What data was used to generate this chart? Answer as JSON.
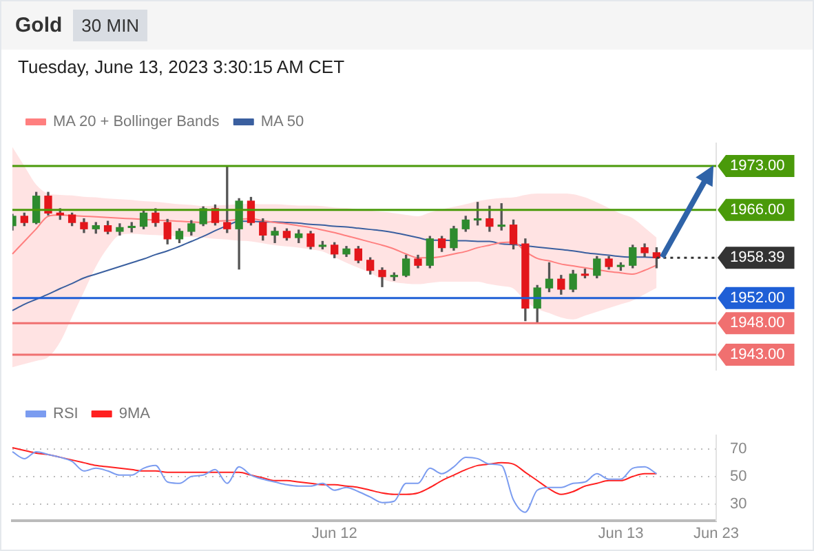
{
  "chart_data": [
    {
      "type": "candlestick",
      "title": "Gold",
      "subtitle": "Tuesday, June 13, 2023 3:30:15 AM CET",
      "annotations": [
        "30 MIN"
      ],
      "categories": [
        null,
        null,
        null,
        null,
        null,
        null,
        null,
        null,
        null,
        null,
        null,
        null,
        null,
        null,
        null,
        null,
        null,
        null,
        null,
        null,
        null,
        null,
        null,
        null,
        null,
        null,
        null,
        null,
        null,
        null,
        null,
        null,
        null,
        null,
        null,
        null,
        null,
        null,
        null,
        null,
        null,
        null,
        null,
        null,
        null,
        null,
        null,
        null,
        null,
        null,
        null,
        null,
        null,
        null,
        null,
        null,
        null,
        null,
        null,
        null
      ],
      "ohlc": [
        [
          1963.5,
          1965.3,
          1962.8,
          1965
        ],
        [
          1965,
          1965.5,
          1963.5,
          1964
        ],
        [
          1964,
          1968.8,
          1963.8,
          1968.2
        ],
        [
          1968.2,
          1968.8,
          1965.2,
          1965.5
        ],
        [
          1965.5,
          1966.2,
          1964.5,
          1965.2
        ],
        [
          1965.2,
          1965.5,
          1963.5,
          1964
        ],
        [
          1964,
          1964.6,
          1962.4,
          1963
        ],
        [
          1963,
          1964,
          1962.3,
          1963.5
        ],
        [
          1963.5,
          1964.2,
          1962.2,
          1962.6
        ],
        [
          1962.6,
          1963.8,
          1962,
          1963.2
        ],
        [
          1963.2,
          1964,
          1962.5,
          1963.4
        ],
        [
          1963.4,
          1965.8,
          1963,
          1965.5
        ],
        [
          1965.5,
          1966.2,
          1963.4,
          1964
        ],
        [
          1964,
          1964.5,
          1960.6,
          1961.4
        ],
        [
          1961.4,
          1963,
          1960.8,
          1962.6
        ],
        [
          1962.6,
          1964.3,
          1962,
          1963.8
        ],
        [
          1963.8,
          1966.5,
          1963.5,
          1966.2
        ],
        [
          1966.2,
          1966.8,
          1963.6,
          1964
        ],
        [
          1964,
          1973,
          1962.4,
          1963
        ],
        [
          1963,
          1967.8,
          1956.6,
          1967.4
        ],
        [
          1967.4,
          1968,
          1963.6,
          1964
        ],
        [
          1964,
          1964.6,
          1961.2,
          1962
        ],
        [
          1962,
          1963.2,
          1960.8,
          1962.6
        ],
        [
          1962.6,
          1963,
          1961.2,
          1961.6
        ],
        [
          1961.6,
          1962.8,
          1960.8,
          1962.2
        ],
        [
          1962.2,
          1962.6,
          1959.8,
          1960.2
        ],
        [
          1960.2,
          1961,
          1959.8,
          1960.4
        ],
        [
          1960.4,
          1960.8,
          1958.4,
          1959
        ],
        [
          1959,
          1960.2,
          1958.6,
          1959.8
        ],
        [
          1959.8,
          1960.2,
          1957.6,
          1958
        ],
        [
          1958,
          1958.4,
          1955.8,
          1956.4
        ],
        [
          1956.4,
          1956.8,
          1953.8,
          1955.4
        ],
        [
          1955.4,
          1956,
          1954.8,
          1955.6
        ],
        [
          1955.6,
          1958.8,
          1955.4,
          1958.2
        ],
        [
          1958.2,
          1958.8,
          1956.8,
          1957.2
        ],
        [
          1957.2,
          1961.8,
          1956.8,
          1961.4
        ],
        [
          1961.4,
          1961.8,
          1959.4,
          1960
        ],
        [
          1960,
          1963.4,
          1959.6,
          1963
        ],
        [
          1963,
          1965,
          1962.6,
          1964.4
        ],
        [
          1964.4,
          1967.2,
          1963.6,
          1964.6
        ],
        [
          1964.6,
          1966.6,
          1962.6,
          1963.4
        ],
        [
          1963.4,
          1967,
          1962.8,
          1963.6
        ],
        [
          1963.6,
          1964.4,
          1959.8,
          1960.6
        ],
        [
          1960.6,
          1961.4,
          1948.4,
          1950.4
        ],
        [
          1950.4,
          1954,
          1948,
          1953.6
        ],
        [
          1953.6,
          1957.6,
          1953,
          1955
        ],
        [
          1955,
          1955.6,
          1952.6,
          1953.4
        ],
        [
          1953.4,
          1956.4,
          1953,
          1955.8
        ],
        [
          1955.8,
          1956.6,
          1955.2,
          1955.6
        ],
        [
          1955.6,
          1958.6,
          1955.2,
          1958.2
        ],
        [
          1958.2,
          1958.6,
          1956.6,
          1957
        ],
        [
          1957,
          1957.6,
          1956.4,
          1957.2
        ],
        [
          1957.2,
          1960.4,
          1956.8,
          1960
        ],
        [
          1960,
          1960.6,
          1958.6,
          1959.2
        ],
        [
          1959.2,
          1960,
          1956.8,
          1958.4
        ],
        null,
        null,
        null,
        null,
        null
      ],
      "colors": [
        "#2e8b2e",
        "#e3161b",
        "#2e8b2e",
        "#e3161b",
        "#e3161b",
        "#e3161b",
        "#e3161b",
        "#2e8b2e",
        "#e3161b",
        "#2e8b2e",
        "#2e8b2e",
        "#2e8b2e",
        "#e3161b",
        "#e3161b",
        "#2e8b2e",
        "#2e8b2e",
        "#2e8b2e",
        "#e3161b",
        "#e3161b",
        "#2e8b2e",
        "#e3161b",
        "#e3161b",
        "#2e8b2e",
        "#e3161b",
        "#2e8b2e",
        "#e3161b",
        "#2e8b2e",
        "#e3161b",
        "#2e8b2e",
        "#e3161b",
        "#e3161b",
        "#e3161b",
        "#2e8b2e",
        "#2e8b2e",
        "#e3161b",
        "#2e8b2e",
        "#e3161b",
        "#2e8b2e",
        "#2e8b2e",
        "#2e8b2e",
        "#e3161b",
        "#2e8b2e",
        "#e3161b",
        "#e3161b",
        "#2e8b2e",
        "#2e8b2e",
        "#e3161b",
        "#2e8b2e",
        "#e3161b",
        "#2e8b2e",
        "#e3161b",
        "#2e8b2e",
        "#2e8b2e",
        "#e3161b",
        "#e3161b",
        null,
        null,
        null,
        null,
        null
      ],
      "series": [
        {
          "name": "MA 20 + Bollinger Bands",
          "type": "line",
          "color": "#ff7f7f",
          "values": [
            1959,
            1961,
            1963,
            1965,
            1965.2,
            1965.1,
            1965,
            1964.9,
            1964.8,
            1964.7,
            1964.6,
            1964.5,
            1964.4,
            1964.3,
            1964.2,
            1964.1,
            1964,
            1964.2,
            1964.3,
            1964.5,
            1964.6,
            1964.3,
            1964,
            1963.8,
            1963.5,
            1963.2,
            1962.8,
            1962.4,
            1961.9,
            1961.4,
            1960.9,
            1960.4,
            1959.8,
            1959,
            1958.4,
            1958.4,
            1958.6,
            1959,
            1959.4,
            1960,
            1960.4,
            1960.8,
            1960.9,
            1959.4,
            1958.3,
            1957.9,
            1957.4,
            1957.1,
            1956.8,
            1956.5,
            1956.2,
            1956,
            1955.8,
            1956.4,
            1957.2,
            null,
            null,
            null,
            null,
            null
          ],
          "lower": [
            1941,
            1941.5,
            1942,
            1942.6,
            1945,
            1949,
            1953,
            1957,
            1960,
            1962,
            1962.2,
            1962.1,
            1962,
            1961.9,
            1961.8,
            1961.7,
            1961.6,
            1961.4,
            1961.3,
            1961.1,
            1961,
            1960.7,
            1960.4,
            1960.2,
            1960,
            1959.7,
            1959.4,
            1958.5,
            1957.6,
            1956.8,
            1956,
            1955,
            1954.5,
            1954.3,
            1954.2,
            1954.4,
            1954.6,
            1954.6,
            1954.6,
            1954.6,
            1954.2,
            1953.9,
            1953.5,
            1951.5,
            1950.3,
            1949.6,
            1948.9,
            1948.6,
            1949.2,
            1949.8,
            1950.4,
            1951,
            1951.6,
            1952.6,
            1953.6,
            null,
            null,
            null,
            null,
            null
          ],
          "upper": [
            1976,
            1973,
            1970,
            1968.6,
            1968.4,
            1968.3,
            1968.1,
            1968,
            1967.8,
            1967.7,
            1967.6,
            1967.4,
            1967.3,
            1967.1,
            1966.9,
            1966.8,
            1966.6,
            1966.7,
            1966.8,
            1966.9,
            1967,
            1966.9,
            1966.9,
            1966.8,
            1966.7,
            1966.7,
            1966.6,
            1966.4,
            1966.3,
            1966.1,
            1965.9,
            1965.7,
            1965.5,
            1965.2,
            1965,
            1965.6,
            1966.1,
            1966.5,
            1966.9,
            1967.4,
            1967.7,
            1967.9,
            1968,
            1968.4,
            1968.6,
            1968.6,
            1968.6,
            1968.5,
            1968,
            1967.2,
            1966.3,
            1965.4,
            1964.7,
            1963.2,
            1961.6,
            null,
            null,
            null,
            null,
            null
          ]
        },
        {
          "name": "MA 50",
          "type": "line",
          "color": "#3a5f9f",
          "values": [
            1950,
            1951,
            1951.8,
            1952.6,
            1953.5,
            1954.3,
            1955.2,
            1955.8,
            1956.4,
            1957,
            1957.6,
            1958.2,
            1958.9,
            1959.5,
            1960.2,
            1961,
            1961.8,
            1962.7,
            1963.5,
            1964.2,
            1964.2,
            1964.1,
            1964.1,
            1964,
            1963.9,
            1963.7,
            1963.6,
            1963.4,
            1963.3,
            1963.1,
            1962.9,
            1962.7,
            1962.4,
            1962,
            1961.6,
            1961.2,
            1961.2,
            1961.1,
            1961.1,
            1961,
            1961,
            1960.6,
            1960.5,
            1960.3,
            1960.1,
            1959.9,
            1959.7,
            1959.5,
            1959.2,
            1959,
            1958.8,
            1958.6,
            1958.5,
            1958.5,
            1958.4,
            null,
            null,
            null,
            null,
            null
          ]
        }
      ],
      "tick_labels": "y",
      "legend": "top left",
      "ylim": [
        1940.6,
        1976.6
      ],
      "yticks": [
        {
          "value": 1973,
          "label": "1973.00"
        },
        {
          "value": 1966,
          "label": "1966.00"
        },
        {
          "value": 1958.39,
          "label": "1958.39"
        },
        {
          "value": 1952,
          "label": "1952.00"
        },
        {
          "value": 1948,
          "label": "1948.00"
        },
        {
          "value": 1943,
          "label": "1943.00"
        }
      ],
      "ref_lines": [
        {
          "axis": "y",
          "value": 1973,
          "color": "#4a9a0a"
        },
        {
          "axis": "y",
          "value": 1966,
          "color": "#4a9a0a"
        },
        {
          "axis": "y",
          "value": 1958.39,
          "color": "#333333",
          "line_style": "dotted"
        },
        {
          "axis": "y",
          "value": 1952,
          "color": "#1f5fd6"
        },
        {
          "axis": "y",
          "value": 1948,
          "color": "#f07070"
        },
        {
          "axis": "y",
          "value": 1943,
          "color": "#f07070"
        }
      ]
    },
    {
      "type": "line",
      "legend": "top left",
      "grid": "y",
      "ylim": [
        18,
        80
      ],
      "yticks": [
        30,
        50,
        70
      ],
      "categories": [
        null,
        null,
        null,
        null,
        null,
        null,
        null,
        null,
        null,
        null,
        null,
        null,
        null,
        null,
        null,
        null,
        null,
        null,
        null,
        null,
        null,
        null,
        null,
        null,
        null,
        null,
        null,
        "Jun 12",
        null,
        null,
        null,
        null,
        null,
        null,
        null,
        null,
        null,
        null,
        null,
        null,
        null,
        null,
        null,
        null,
        null,
        null,
        null,
        null,
        null,
        null,
        null,
        "Jun 13",
        null,
        null,
        null,
        null,
        null,
        null,
        null,
        "Jun 23"
      ],
      "series": [
        {
          "name": "RSI",
          "color": "#7b9cf0",
          "values": [
            68,
            63,
            68,
            66,
            64,
            61,
            54,
            56,
            54,
            51,
            51,
            56,
            58,
            46,
            45,
            50,
            51,
            55,
            45,
            57,
            51,
            48,
            46,
            44,
            43,
            43,
            45,
            40,
            42,
            39,
            35,
            31,
            32,
            45,
            45,
            56,
            52,
            57,
            64,
            63,
            59,
            58,
            33,
            24,
            40,
            42,
            42,
            45,
            46,
            52,
            48,
            48,
            56,
            57,
            52,
            null,
            null,
            null,
            null,
            null
          ]
        },
        {
          "name": "9MA",
          "color": "#ff2020",
          "values": [
            71,
            69,
            67,
            66,
            64,
            62,
            60,
            58,
            57,
            56,
            55,
            54,
            54,
            53,
            53,
            53,
            53,
            53,
            53,
            53,
            51,
            49,
            47,
            47,
            46,
            45,
            44,
            44,
            43,
            42,
            40,
            38,
            37,
            37,
            38,
            42,
            47,
            51,
            55,
            58,
            59,
            60,
            59,
            53,
            47,
            41,
            37,
            39,
            43,
            45,
            47,
            47,
            50,
            52,
            52,
            null,
            null,
            null,
            null,
            null
          ]
        }
      ]
    }
  ]
}
